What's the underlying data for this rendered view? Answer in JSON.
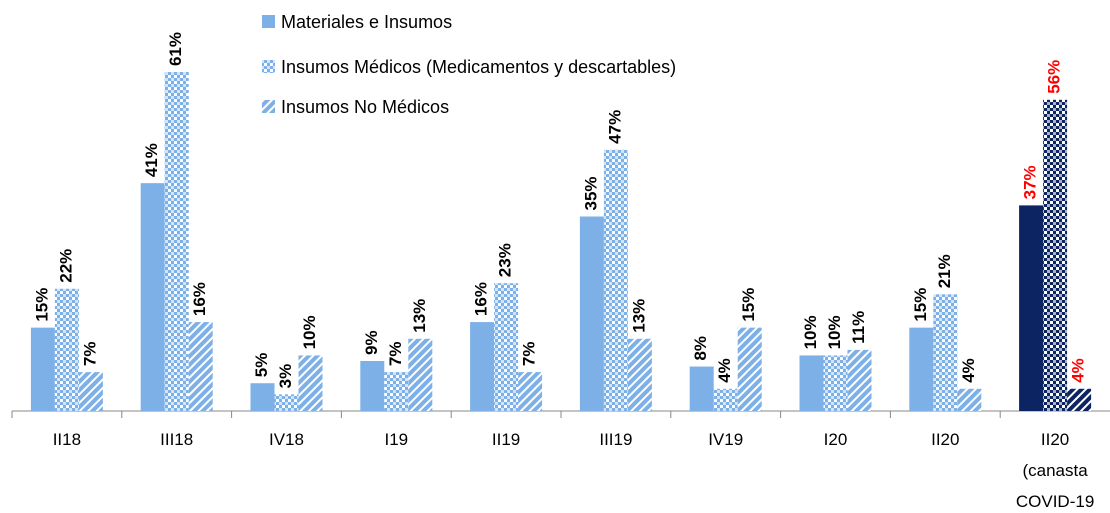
{
  "chart_data": {
    "type": "bar",
    "categories": [
      "II18",
      "III18",
      "IV18",
      "I19",
      "II19",
      "III19",
      "IV19",
      "I20",
      "II20",
      "II20 (canasta COVID-19"
    ],
    "series": [
      {
        "name": "Materiales e Insumos",
        "pattern": "solid",
        "colors": [
          "#7eb0e8",
          "#7eb0e8",
          "#7eb0e8",
          "#7eb0e8",
          "#7eb0e8",
          "#7eb0e8",
          "#7eb0e8",
          "#7eb0e8",
          "#7eb0e8",
          "#0c2461"
        ],
        "values": [
          15,
          41,
          5,
          9,
          16,
          35,
          8,
          10,
          15,
          37
        ],
        "value_labels": [
          "15%",
          "41%",
          "5%",
          "9%",
          "16%",
          "35%",
          "8%",
          "10%",
          "15%",
          "37%"
        ]
      },
      {
        "name": "Insumos Médicos (Medicamentos y descartables)",
        "pattern": "checker",
        "colors": [
          "#7eb0e8",
          "#7eb0e8",
          "#7eb0e8",
          "#7eb0e8",
          "#7eb0e8",
          "#7eb0e8",
          "#7eb0e8",
          "#7eb0e8",
          "#7eb0e8",
          "#0c2461"
        ],
        "values": [
          22,
          61,
          3,
          7,
          23,
          47,
          4,
          10,
          21,
          56
        ],
        "value_labels": [
          "22%",
          "61%",
          "3%",
          "7%",
          "23%",
          "47%",
          "4%",
          "10%",
          "21%",
          "56%"
        ]
      },
      {
        "name": "Insumos No Médicos",
        "pattern": "diagonal",
        "colors": [
          "#7eb0e8",
          "#7eb0e8",
          "#7eb0e8",
          "#7eb0e8",
          "#7eb0e8",
          "#7eb0e8",
          "#7eb0e8",
          "#7eb0e8",
          "#7eb0e8",
          "#0c2461"
        ],
        "values": [
          7,
          16,
          10,
          13,
          7,
          13,
          15,
          11,
          4,
          4
        ],
        "value_labels": [
          "7%",
          "16%",
          "10%",
          "13%",
          "7%",
          "13%",
          "15%",
          "11%",
          "4%",
          "4%"
        ]
      }
    ],
    "value_label_colors": [
      "#000000",
      "#000000",
      "#000000",
      "#000000",
      "#000000",
      "#000000",
      "#000000",
      "#000000",
      "#000000",
      "#ff0000"
    ],
    "ylim": [
      0,
      70
    ],
    "grid": false,
    "legend": "top"
  }
}
